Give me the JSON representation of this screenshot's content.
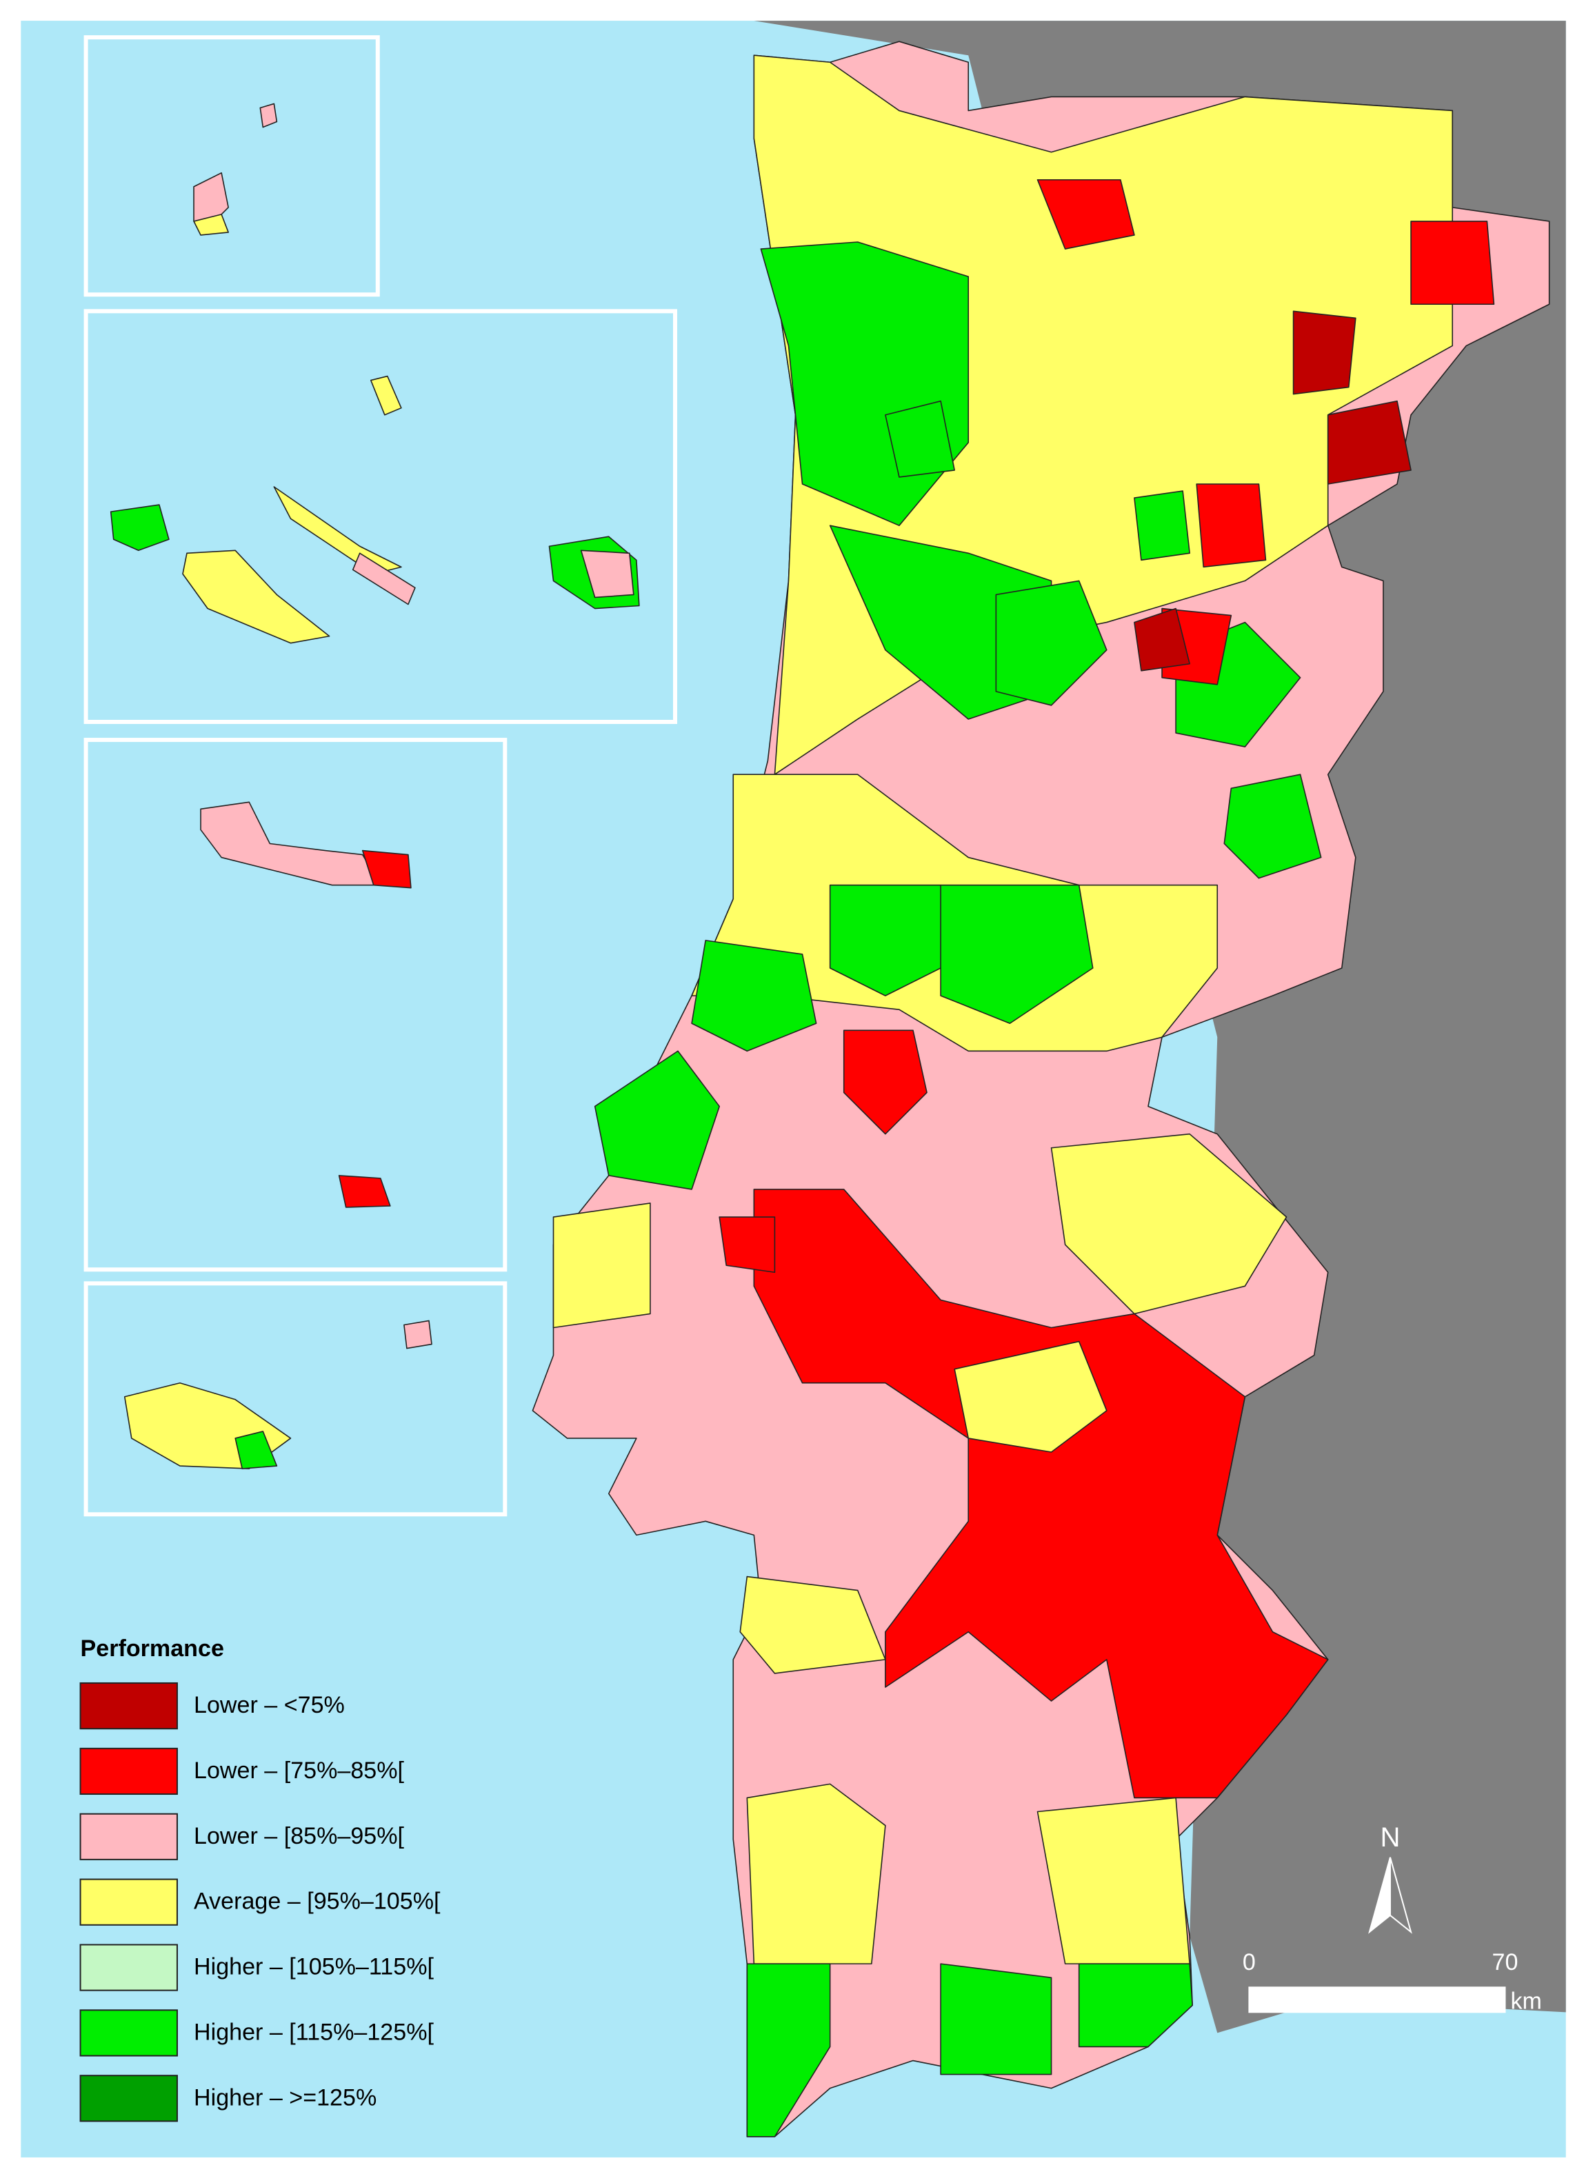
{
  "legend": {
    "title": "Performance",
    "items": [
      {
        "label": "Lower – <75%",
        "color": "#c00000"
      },
      {
        "label": "Lower – [75%–85%[",
        "color": "#ff0000"
      },
      {
        "label": "Lower – [85%–95%[",
        "color": "#ffb8c0"
      },
      {
        "label": "Average – [95%–105%[",
        "color": "#ffff66"
      },
      {
        "label": "Higher – [105%–115%[",
        "color": "#c4f8c4"
      },
      {
        "label": "Higher – [115%–125%[",
        "color": "#00ee00"
      },
      {
        "label": "Higher – >=125%",
        "color": "#00a000"
      }
    ]
  },
  "scale_bar": {
    "labels": [
      "0",
      "70"
    ],
    "unit": "km"
  },
  "north_arrow": {
    "label": "N"
  }
}
